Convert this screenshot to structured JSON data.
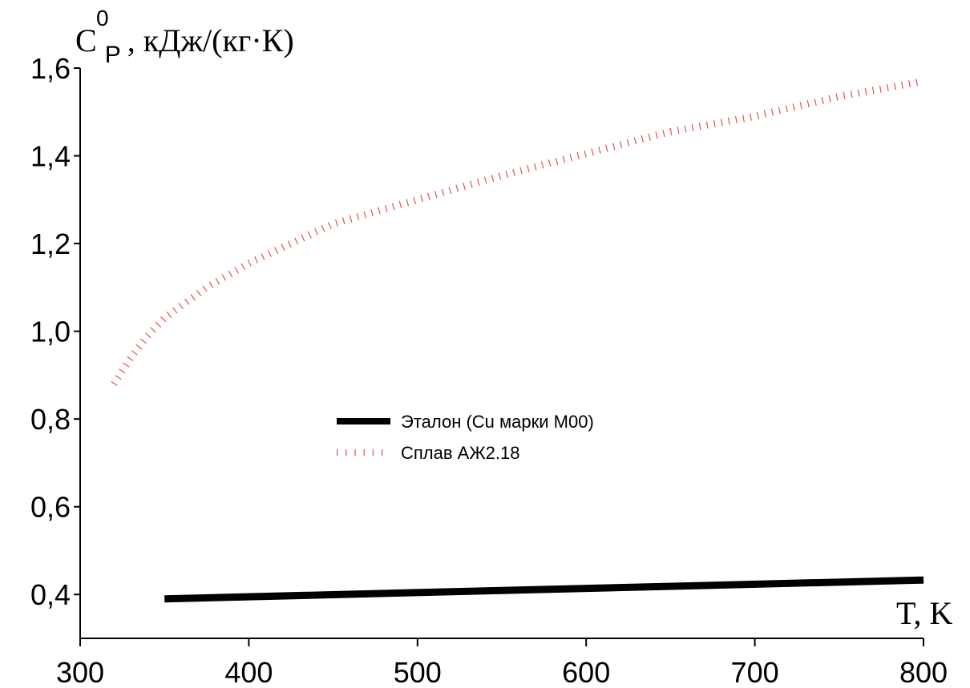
{
  "chart_data": {
    "type": "line",
    "title": "",
    "xlabel": "T, K",
    "ylabel": {
      "symbol": "C",
      "superscript": "0",
      "subscript": "P",
      "units": ", кДж/(кг·К)"
    },
    "xlim": [
      300,
      800
    ],
    "ylim": [
      0.3,
      1.6
    ],
    "x_ticks": [
      300,
      400,
      500,
      600,
      700,
      800
    ],
    "x_tick_labels": [
      "300",
      "400",
      "500",
      "600",
      "700",
      "800"
    ],
    "y_ticks": [
      0.4,
      0.6,
      0.8,
      1.0,
      1.2,
      1.4,
      1.6
    ],
    "y_tick_labels": [
      "0,4",
      "0,6",
      "0,8",
      "1,0",
      "1,2",
      "1,4",
      "1,6"
    ],
    "grid": false,
    "legend_position": "center",
    "series": [
      {
        "name": "Эталон (Cu марки М00)",
        "style": "solid-thick",
        "color": "#000000",
        "x": [
          350,
          800
        ],
        "y": [
          0.39,
          0.433
        ]
      },
      {
        "name": "Сплав АЖ2.18",
        "style": "dotted",
        "color": "#e05050",
        "x": [
          320,
          330,
          340,
          350,
          375,
          400,
          450,
          500,
          550,
          600,
          650,
          700,
          750,
          800
        ],
        "y": [
          0.88,
          0.94,
          0.99,
          1.03,
          1.1,
          1.155,
          1.245,
          1.3,
          1.355,
          1.405,
          1.455,
          1.49,
          1.535,
          1.57
        ]
      }
    ]
  }
}
